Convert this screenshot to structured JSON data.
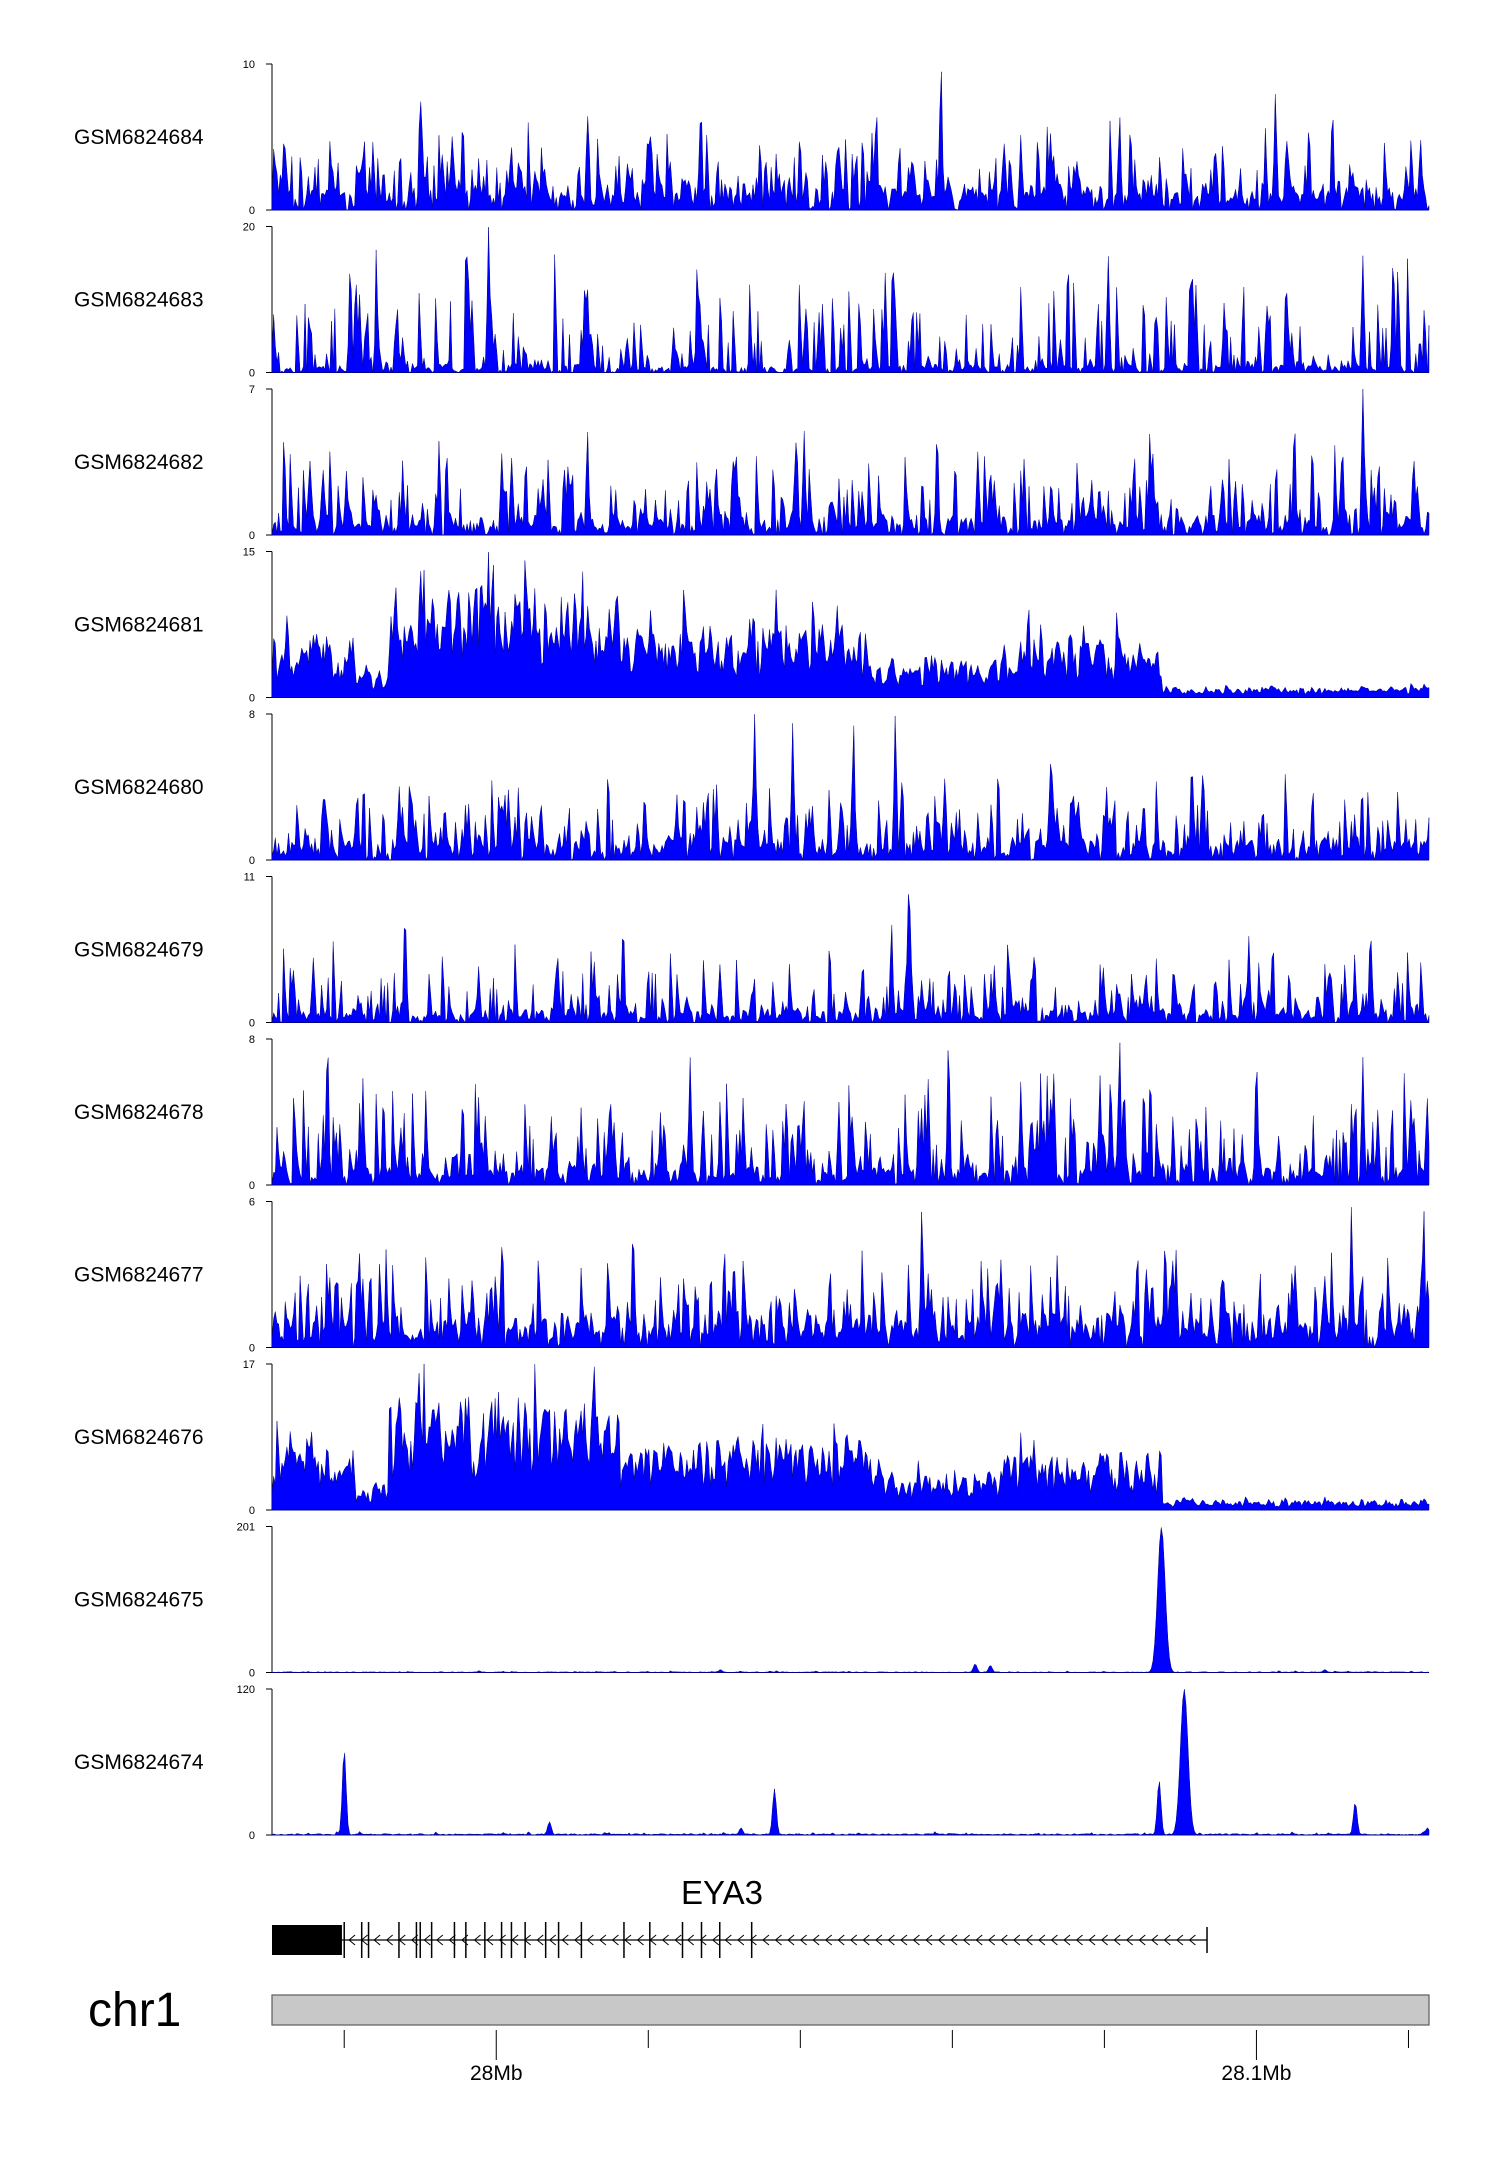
{
  "chart_data": {
    "type": "area",
    "color": "#0000FF",
    "chromosome": "chr1",
    "gene": {
      "name": "EYA3",
      "strand": "-",
      "x_start_mb": 27.9755,
      "x_end_mb": 28.0935,
      "utr_end_mb": 27.9797,
      "exons_mb": [
        27.98,
        27.9823,
        27.9832,
        27.9872,
        27.9895,
        27.99,
        27.9915,
        27.9945,
        27.996,
        27.9985,
        28.0007,
        28.002,
        28.0038,
        28.0065,
        28.0082,
        28.0112,
        28.0168,
        28.0202,
        28.0245,
        28.027,
        28.0294,
        28.0336
      ]
    },
    "x_axis": {
      "range_mb": [
        27.9705,
        28.1227
      ],
      "ticks_mb": [
        27.98,
        28.0,
        28.02,
        28.04,
        28.06,
        28.08,
        28.1,
        28.12
      ],
      "tick_labels": [
        {
          "mb": 28.0,
          "label": "28Mb"
        },
        {
          "mb": 28.1,
          "label": "28.1Mb"
        }
      ]
    },
    "tracks": [
      {
        "name": "GSM6824684",
        "ylim": [
          0,
          10
        ],
        "profile": "noise",
        "base": 1.8,
        "amp": 4.5,
        "gap": 0.3,
        "seed": 11,
        "peaks": [
          [
            27.99,
            8
          ],
          [
            28.012,
            6.5
          ],
          [
            28.05,
            7
          ],
          [
            28.0585,
            10
          ],
          [
            28.082,
            6.5
          ],
          [
            28.1025,
            8
          ],
          [
            28.11,
            7
          ]
        ]
      },
      {
        "name": "GSM6824683",
        "ylim": [
          0,
          20
        ],
        "profile": "noise",
        "base": 1.2,
        "amp": 12,
        "gap": 0.55,
        "seed": 23,
        "peaks": [
          [
            27.999,
            20
          ],
          [
            27.9808,
            15
          ],
          [
            28.0805,
            16
          ],
          [
            28.114,
            16
          ],
          [
            28.118,
            16
          ]
        ]
      },
      {
        "name": "GSM6824682",
        "ylim": [
          0,
          7
        ],
        "profile": "noise",
        "base": 1.0,
        "amp": 3.4,
        "gap": 0.25,
        "seed": 37,
        "peaks": [
          [
            28.012,
            5
          ],
          [
            28.0405,
            5
          ],
          [
            28.058,
            5
          ],
          [
            28.086,
            5
          ],
          [
            28.105,
            5.5
          ],
          [
            28.114,
            7
          ]
        ]
      },
      {
        "name": "GSM6824681",
        "ylim": [
          0,
          15
        ],
        "profile": "broad",
        "base": 0.6,
        "amp": 3.5,
        "gap": 0.02,
        "seed": 41,
        "peaks": [
          [
            27.99,
            14
          ],
          [
            27.999,
            15
          ],
          [
            28.016,
            11
          ],
          [
            28.0448,
            10
          ],
          [
            28.07,
            10
          ]
        ]
      },
      {
        "name": "GSM6824680",
        "ylim": [
          0,
          8
        ],
        "profile": "noise",
        "base": 1.2,
        "amp": 3.4,
        "gap": 0.22,
        "seed": 53,
        "peaks": [
          [
            28.034,
            8
          ],
          [
            28.039,
            7.5
          ],
          [
            28.047,
            7.5
          ],
          [
            28.0525,
            8
          ],
          [
            28.073,
            6
          ],
          [
            28.0915,
            5.5
          ]
        ]
      },
      {
        "name": "GSM6824679",
        "ylim": [
          0,
          11
        ],
        "profile": "noise",
        "base": 1.0,
        "amp": 4.6,
        "gap": 0.25,
        "seed": 67,
        "peaks": [
          [
            27.988,
            8.5
          ],
          [
            28.0167,
            7.5
          ],
          [
            28.052,
            7.5
          ],
          [
            28.0543,
            11
          ],
          [
            28.099,
            6.5
          ],
          [
            28.115,
            7
          ]
        ]
      },
      {
        "name": "GSM6824678",
        "ylim": [
          0,
          8
        ],
        "profile": "noise",
        "base": 1.0,
        "amp": 4.4,
        "gap": 0.25,
        "seed": 79,
        "peaks": [
          [
            27.9778,
            8
          ],
          [
            28.0255,
            7
          ],
          [
            28.0595,
            8
          ],
          [
            28.082,
            8
          ],
          [
            28.1,
            7
          ],
          [
            28.114,
            7
          ]
        ]
      },
      {
        "name": "GSM6824677",
        "ylim": [
          0,
          6
        ],
        "profile": "noise",
        "base": 1.4,
        "amp": 2.9,
        "gap": 0.1,
        "seed": 97,
        "peaks": [
          [
            28.018,
            5
          ],
          [
            28.03,
            4.2
          ],
          [
            28.056,
            5.8
          ],
          [
            28.088,
            4.5
          ],
          [
            28.1125,
            5.8
          ],
          [
            28.122,
            5.8
          ]
        ]
      },
      {
        "name": "GSM6824676",
        "ylim": [
          0,
          17
        ],
        "profile": "broad",
        "base": 0.8,
        "amp": 4.5,
        "gap": 0.02,
        "seed": 103,
        "peaks": [
          [
            27.9905,
            17
          ],
          [
            28.0015,
            12
          ],
          [
            28.035,
            11
          ],
          [
            28.0445,
            11
          ],
          [
            28.069,
            9
          ]
        ]
      },
      {
        "name": "GSM6824675",
        "ylim": [
          0,
          201
        ],
        "profile": "flat",
        "base": 1.0,
        "amp": 2.5,
        "gap": 0.0,
        "seed": 109,
        "peaks": [
          [
            28.0875,
            200
          ],
          [
            28.063,
            12
          ],
          [
            28.065,
            10
          ],
          [
            28.0295,
            4
          ],
          [
            28.109,
            4
          ]
        ]
      },
      {
        "name": "GSM6824674",
        "ylim": [
          0,
          120
        ],
        "profile": "flat",
        "base": 1.2,
        "amp": 3.0,
        "gap": 0.0,
        "seed": 127,
        "peaks": [
          [
            27.98,
            70
          ],
          [
            28.0905,
            120
          ],
          [
            28.0872,
            45
          ],
          [
            28.0366,
            38
          ],
          [
            28.113,
            27
          ],
          [
            28.007,
            11
          ],
          [
            28.0322,
            6
          ],
          [
            28.1225,
            6
          ]
        ]
      }
    ]
  }
}
